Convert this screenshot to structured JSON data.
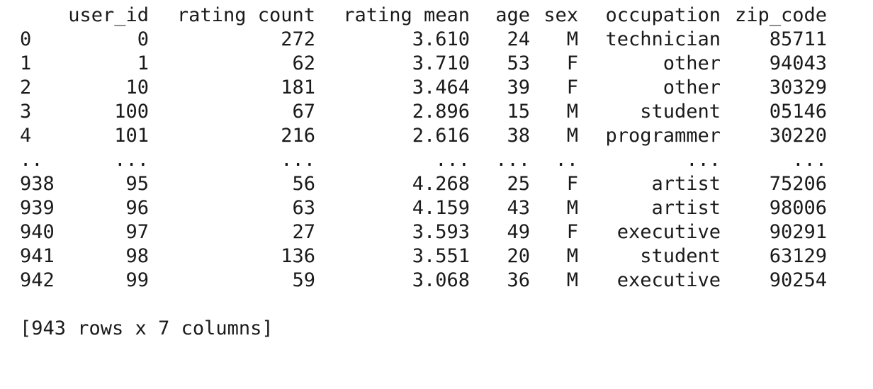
{
  "table": {
    "columns": [
      "",
      "user_id",
      "rating count",
      "rating mean",
      "age",
      "sex",
      "occupation",
      "zip_code"
    ],
    "rows": [
      [
        "0",
        "0",
        "272",
        "3.610",
        "24",
        "M",
        "technician",
        "85711"
      ],
      [
        "1",
        "1",
        "62",
        "3.710",
        "53",
        "F",
        "other",
        "94043"
      ],
      [
        "2",
        "10",
        "181",
        "3.464",
        "39",
        "F",
        "other",
        "30329"
      ],
      [
        "3",
        "100",
        "67",
        "2.896",
        "15",
        "M",
        "student",
        "05146"
      ],
      [
        "4",
        "101",
        "216",
        "2.616",
        "38",
        "M",
        "programmer",
        "30220"
      ],
      [
        "..",
        "...",
        "...",
        "...",
        "...",
        "..",
        "...",
        "..."
      ],
      [
        "938",
        "95",
        "56",
        "4.268",
        "25",
        "F",
        "artist",
        "75206"
      ],
      [
        "939",
        "96",
        "63",
        "4.159",
        "43",
        "M",
        "artist",
        "98006"
      ],
      [
        "940",
        "97",
        "27",
        "3.593",
        "49",
        "F",
        "executive",
        "90291"
      ],
      [
        "941",
        "98",
        "136",
        "3.551",
        "20",
        "M",
        "student",
        "63129"
      ],
      [
        "942",
        "99",
        "59",
        "3.068",
        "36",
        "M",
        "executive",
        "90254"
      ]
    ]
  },
  "summary": "[943 rows x 7 columns]"
}
